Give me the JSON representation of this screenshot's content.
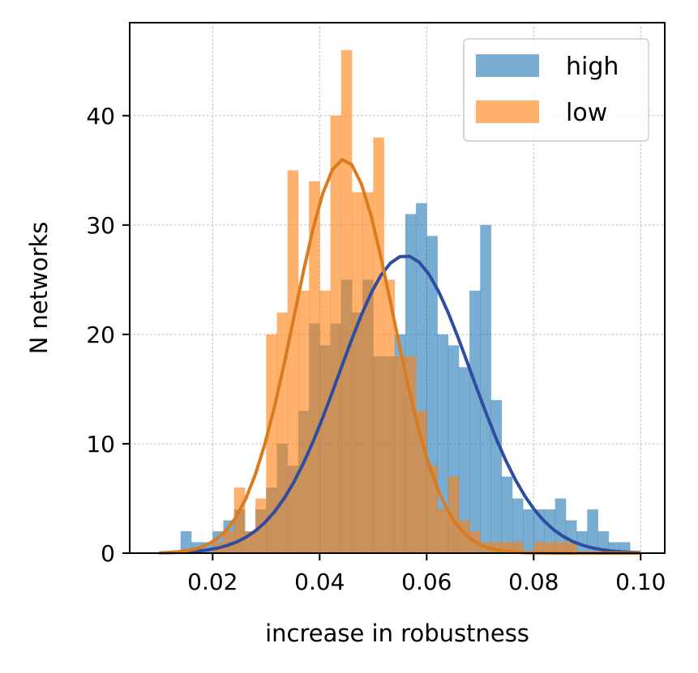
{
  "chart_data": {
    "type": "bar",
    "title": "",
    "xlabel": "increase in robustness",
    "ylabel": "N networks",
    "xlim": [
      0.0045,
      0.1045
    ],
    "ylim": [
      0,
      48.5
    ],
    "xticks": [
      0.02,
      0.04,
      0.06,
      0.08,
      0.1
    ],
    "xtick_labels": [
      "0.02",
      "0.04",
      "0.06",
      "0.08",
      "0.10"
    ],
    "yticks": [
      0,
      10,
      20,
      30,
      40
    ],
    "ytick_labels": [
      "0",
      "10",
      "20",
      "30",
      "40"
    ],
    "grid": true,
    "legend_position": "top-right",
    "series": [
      {
        "name": "high",
        "kind": "histogram",
        "color": "#1f77b4",
        "opacity": 0.6,
        "bin_width": 0.002,
        "bin_left_edges": [
          0.014,
          0.016,
          0.018,
          0.02,
          0.022,
          0.024,
          0.026,
          0.028,
          0.03,
          0.032,
          0.034,
          0.036,
          0.038,
          0.04,
          0.042,
          0.044,
          0.046,
          0.048,
          0.05,
          0.052,
          0.054,
          0.056,
          0.058,
          0.06,
          0.062,
          0.064,
          0.066,
          0.068,
          0.07,
          0.072,
          0.074,
          0.076,
          0.078,
          0.08,
          0.082,
          0.084,
          0.086,
          0.088,
          0.09,
          0.092,
          0.094,
          0.096
        ],
        "values": [
          2,
          1,
          1,
          2,
          3,
          4,
          2,
          4,
          6,
          10,
          8,
          13,
          21,
          19,
          21,
          25,
          22,
          25,
          18,
          18,
          20,
          31,
          32,
          29,
          20,
          19,
          17,
          24,
          30,
          14,
          7,
          5,
          4,
          4,
          4,
          5,
          3,
          2,
          4,
          2,
          1,
          1
        ]
      },
      {
        "name": "low",
        "kind": "histogram",
        "color": "#ff7f0e",
        "opacity": 0.6,
        "bin_width": 0.002,
        "bin_left_edges": [
          0.02,
          0.022,
          0.024,
          0.026,
          0.028,
          0.03,
          0.032,
          0.034,
          0.036,
          0.038,
          0.04,
          0.042,
          0.044,
          0.046,
          0.048,
          0.05,
          0.052,
          0.054,
          0.056,
          0.058,
          0.06,
          0.062,
          0.064,
          0.066,
          0.068,
          0.07,
          0.072,
          0.074,
          0.076,
          0.078,
          0.08,
          0.082,
          0.084,
          0.086
        ],
        "values": [
          1,
          2,
          6,
          2,
          5,
          20,
          22,
          35,
          24,
          34,
          24,
          40,
          46,
          33,
          33,
          38,
          25,
          18,
          18,
          13,
          8,
          4,
          7,
          3,
          2,
          1,
          1,
          1,
          1,
          0,
          1,
          1,
          1,
          1
        ]
      },
      {
        "name": "",
        "kind": "line",
        "color": "#2f4da0",
        "distribution": "normal",
        "mean": 0.056,
        "std": 0.0123,
        "peak": 27.2,
        "x_range": [
          0.01,
          0.1
        ]
      },
      {
        "name": "",
        "kind": "line",
        "color": "#d97b1e",
        "distribution": "normal",
        "mean": 0.0445,
        "std": 0.0092,
        "peak": 36,
        "x_range": [
          0.01,
          0.1
        ]
      }
    ]
  }
}
